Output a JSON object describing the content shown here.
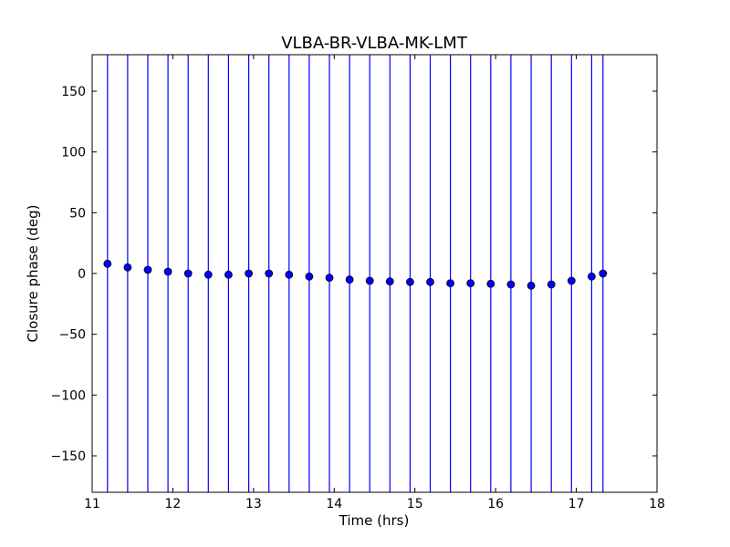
{
  "chart_data": {
    "type": "scatter",
    "title": "VLBA-BR-VLBA-MK-LMT",
    "xlabel": "Time (hrs)",
    "ylabel": "Closure phase (deg)",
    "xlim": [
      11,
      18
    ],
    "ylim": [
      -180,
      180
    ],
    "xticks": [
      11,
      12,
      13,
      14,
      15,
      16,
      17,
      18
    ],
    "yticks": [
      -150,
      -100,
      -50,
      0,
      50,
      100,
      150
    ],
    "xtick_labels": [
      "11",
      "12",
      "13",
      "14",
      "15",
      "16",
      "17",
      "18"
    ],
    "ytick_labels": [
      "−150",
      "−100",
      "−50",
      "0",
      "50",
      "100",
      "150"
    ],
    "grid": false,
    "marker_color": "#0000ff",
    "errorbar_color": "#0000ff",
    "series": [
      {
        "x": [
          11.19,
          11.44,
          11.69,
          11.94,
          12.19,
          12.44,
          12.69,
          12.94,
          13.19,
          13.44,
          13.69,
          13.94,
          14.19,
          14.44,
          14.69,
          14.94,
          15.19,
          15.44,
          15.69,
          15.94,
          16.19,
          16.44,
          16.69,
          16.94,
          17.19,
          17.33
        ],
        "y": [
          8,
          5,
          3,
          1.5,
          0,
          -1,
          -1,
          0,
          0,
          -1,
          -2.5,
          -3.5,
          -5,
          -6,
          -6.5,
          -7,
          -7,
          -8,
          -8,
          -8.5,
          -9,
          -10,
          -9,
          -6,
          -2.5,
          0
        ],
        "yerr_low": [
          -180,
          -180,
          -180,
          -180,
          -180,
          -180,
          -180,
          -180,
          -180,
          -180,
          -180,
          -180,
          -180,
          -180,
          -180,
          -180,
          -180,
          -180,
          -180,
          -180,
          -180,
          -180,
          -180,
          -180,
          -180,
          -180
        ],
        "yerr_high": [
          180,
          180,
          180,
          180,
          180,
          180,
          180,
          180,
          180,
          180,
          180,
          180,
          180,
          180,
          180,
          180,
          180,
          180,
          180,
          180,
          180,
          180,
          180,
          180,
          180,
          180
        ]
      }
    ]
  }
}
